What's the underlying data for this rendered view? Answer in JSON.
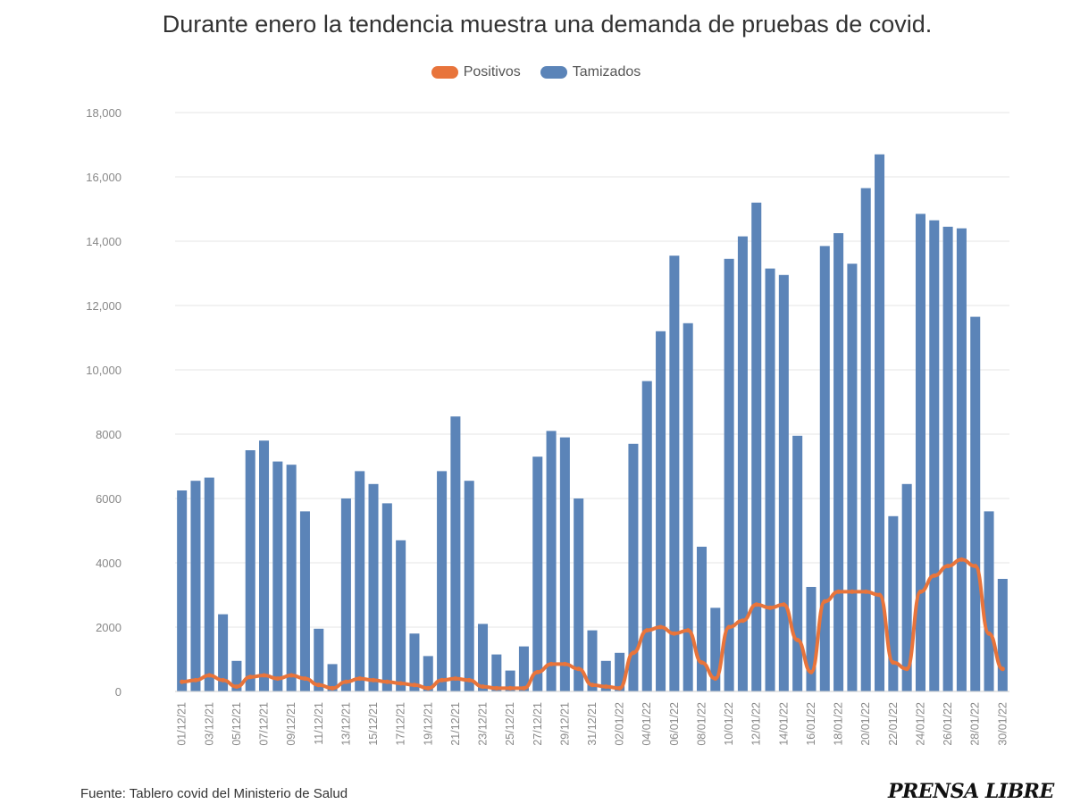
{
  "subtitle": "Durante enero la tendencia muestra una demanda de pruebas de covid.",
  "source": "Fuente: Tablero covid del Ministerio de Salud",
  "brand": "PRENSA LIBRE",
  "legend": [
    {
      "label": "Positivos",
      "color": "#e8743b"
    },
    {
      "label": "Tamizados",
      "color": "#5b84b8"
    }
  ],
  "chart_data": {
    "type": "bar",
    "y_ticks": [
      "0",
      "2000",
      "4000",
      "6000",
      "8000",
      "10,000",
      "12,000",
      "14,000",
      "16,000",
      "18,000"
    ],
    "ylim": [
      0,
      18000
    ],
    "grid": true,
    "legend_position": "top",
    "categories": [
      "01/12/21",
      "02/12/21",
      "03/12/21",
      "04/12/21",
      "05/12/21",
      "06/12/21",
      "07/12/21",
      "08/12/21",
      "09/12/21",
      "10/12/21",
      "11/12/21",
      "12/12/21",
      "13/12/21",
      "14/12/21",
      "15/12/21",
      "16/12/21",
      "17/12/21",
      "18/12/21",
      "19/12/21",
      "20/12/21",
      "21/12/21",
      "22/12/21",
      "23/12/21",
      "24/12/21",
      "25/12/21",
      "26/12/21",
      "27/12/21",
      "28/12/21",
      "29/12/21",
      "30/12/21",
      "31/12/21",
      "01/01/22",
      "02/01/22",
      "03/01/22",
      "04/01/22",
      "05/01/22",
      "06/01/22",
      "07/01/22",
      "08/01/22",
      "09/01/22",
      "10/01/22",
      "11/01/22",
      "12/01/22",
      "13/01/22",
      "14/01/22",
      "15/01/22",
      "16/01/22",
      "17/01/22",
      "18/01/22",
      "19/01/22",
      "20/01/22",
      "21/01/22",
      "22/01/22",
      "23/01/22",
      "24/01/22",
      "25/01/22",
      "26/01/22",
      "27/01/22",
      "28/01/22",
      "29/01/22",
      "30/01/22"
    ],
    "tick_every": 2,
    "series": [
      {
        "name": "Tamizados",
        "type": "bar",
        "color": "#5b84b8",
        "values": [
          6250,
          6550,
          6650,
          2400,
          950,
          7500,
          7800,
          7150,
          7050,
          5600,
          1950,
          850,
          6000,
          6850,
          6450,
          5850,
          4700,
          1800,
          1100,
          6850,
          8550,
          6550,
          2100,
          1150,
          650,
          1400,
          7300,
          8100,
          7900,
          6000,
          1900,
          950,
          1200,
          7700,
          9650,
          11200,
          13550,
          11450,
          4500,
          2600,
          13450,
          14150,
          15200,
          13150,
          12950,
          7950,
          3250,
          13850,
          14250,
          13300,
          15650,
          16700,
          5450,
          6450,
          14850,
          14650,
          14450,
          14400,
          11650,
          5600,
          3500
        ]
      },
      {
        "name": "Positivos",
        "type": "line",
        "color": "#e8743b",
        "values": [
          300,
          350,
          500,
          350,
          150,
          450,
          500,
          400,
          500,
          400,
          200,
          100,
          300,
          400,
          350,
          300,
          250,
          200,
          100,
          350,
          400,
          350,
          150,
          100,
          100,
          100,
          600,
          850,
          850,
          700,
          200,
          150,
          100,
          1200,
          1900,
          2000,
          1800,
          1900,
          900,
          400,
          2000,
          2200,
          2700,
          2600,
          2700,
          1600,
          600,
          2800,
          3100,
          3100,
          3100,
          3000,
          900,
          700,
          3100,
          3600,
          3900,
          4100,
          3900,
          1800,
          700
        ]
      }
    ]
  }
}
